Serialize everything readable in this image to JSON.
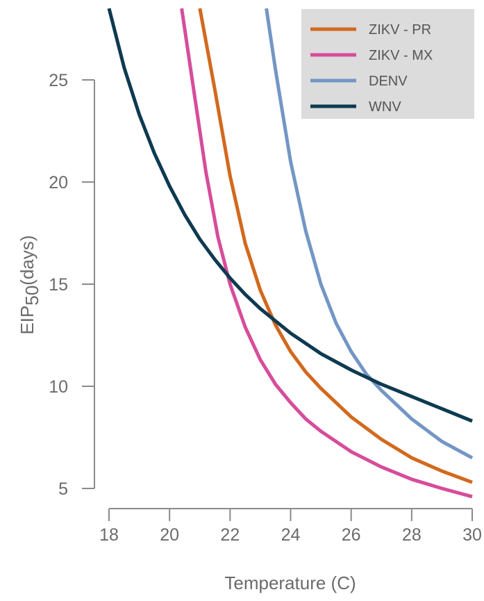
{
  "chart_data": {
    "type": "line",
    "title": "",
    "xlabel": "Temperature (C)",
    "ylabel_main": "EIP",
    "ylabel_sub": "50",
    "ylabel_unit": "(days)",
    "xlim": [
      18,
      30
    ],
    "ylim": [
      4.5,
      28.5
    ],
    "xticks": [
      "18",
      "20",
      "22",
      "24",
      "26",
      "28",
      "30"
    ],
    "yticks": [
      "5",
      "10",
      "15",
      "20",
      "25"
    ],
    "grid": false,
    "legend_position": "top-right",
    "series": [
      {
        "name": "ZIKV - PR",
        "color": "#d2691e",
        "x": [
          21.0,
          21.5,
          22.0,
          22.5,
          23.0,
          23.5,
          24.0,
          24.5,
          25.0,
          26.0,
          27.0,
          28.0,
          29.0,
          30.0
        ],
        "y": [
          28.5,
          24.5,
          20.3,
          17.0,
          14.7,
          13.0,
          11.7,
          10.7,
          9.9,
          8.5,
          7.4,
          6.5,
          5.85,
          5.3
        ]
      },
      {
        "name": "ZIKV - MX",
        "color": "#d64d9a",
        "x": [
          20.4,
          20.8,
          21.2,
          21.6,
          22.0,
          22.5,
          23.0,
          23.5,
          24.0,
          24.5,
          25.0,
          26.0,
          27.0,
          28.0,
          29.0,
          30.0
        ],
        "y": [
          28.5,
          24.5,
          20.5,
          17.3,
          15.0,
          12.9,
          11.3,
          10.1,
          9.2,
          8.4,
          7.8,
          6.8,
          6.05,
          5.45,
          5.0,
          4.6
        ]
      },
      {
        "name": "DENV",
        "color": "#7396c5",
        "x": [
          23.2,
          23.5,
          24.0,
          24.5,
          25.0,
          25.5,
          26.0,
          26.5,
          27.0,
          28.0,
          29.0,
          30.0
        ],
        "y": [
          28.5,
          25.5,
          21.0,
          17.6,
          15.0,
          13.1,
          11.7,
          10.6,
          9.8,
          8.4,
          7.3,
          6.5
        ]
      },
      {
        "name": "WNV",
        "color": "#0d3a50",
        "x": [
          18.0,
          18.5,
          19.0,
          19.5,
          20.0,
          20.5,
          21.0,
          21.5,
          22.0,
          22.5,
          23.0,
          24.0,
          25.0,
          26.0,
          27.0,
          28.0,
          29.0,
          30.0
        ],
        "y": [
          28.5,
          25.6,
          23.3,
          21.4,
          19.8,
          18.4,
          17.2,
          16.2,
          15.3,
          14.5,
          13.8,
          12.6,
          11.6,
          10.8,
          10.1,
          9.5,
          8.9,
          8.3
        ]
      }
    ]
  }
}
